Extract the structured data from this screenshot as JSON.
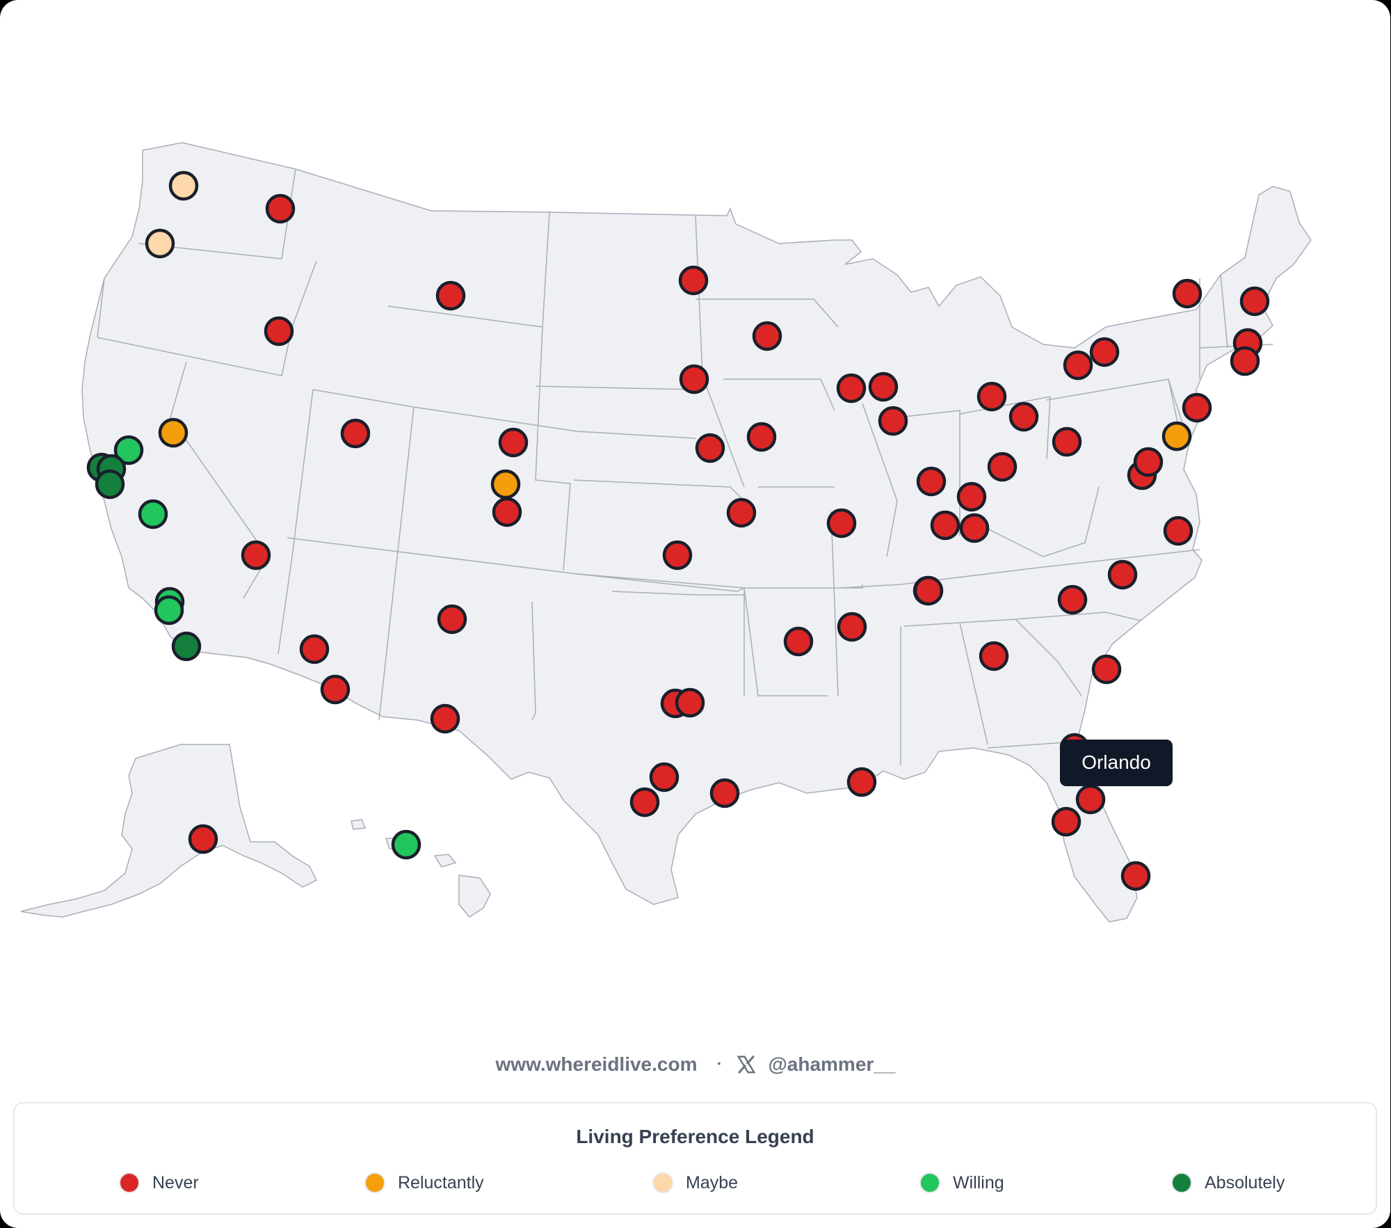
{
  "colors": {
    "never": "#dc2626",
    "reluctantly": "#f59e0b",
    "maybe": "#fed7aa",
    "willing": "#22c55e",
    "absolutely": "#15803d"
  },
  "tooltip": {
    "text": "Orlando"
  },
  "footer": {
    "site": "www.whereidlive.com",
    "separator": "·",
    "x_icon": "x-logo-icon",
    "handle": "@ahammer__"
  },
  "legend": {
    "title": "Living Preference Legend",
    "items": [
      {
        "label": "Never",
        "key": "never"
      },
      {
        "label": "Reluctantly",
        "key": "reluctantly"
      },
      {
        "label": "Maybe",
        "key": "maybe"
      },
      {
        "label": "Willing",
        "key": "willing"
      },
      {
        "label": "Absolutely",
        "key": "absolutely"
      }
    ]
  },
  "locations": [
    {
      "name": "Seattle",
      "pref": "maybe"
    },
    {
      "name": "Portland",
      "pref": "maybe"
    },
    {
      "name": "Spokane",
      "pref": "never"
    },
    {
      "name": "Boise",
      "pref": "never"
    },
    {
      "name": "Reno",
      "pref": "reluctantly"
    },
    {
      "name": "Sacramento",
      "pref": "willing"
    },
    {
      "name": "San Francisco",
      "pref": "absolutely"
    },
    {
      "name": "Oakland",
      "pref": "absolutely"
    },
    {
      "name": "San Jose",
      "pref": "absolutely"
    },
    {
      "name": "Fresno",
      "pref": "willing"
    },
    {
      "name": "Los Angeles",
      "pref": "willing"
    },
    {
      "name": "Long Beach",
      "pref": "willing"
    },
    {
      "name": "San Diego",
      "pref": "absolutely"
    },
    {
      "name": "Las Vegas",
      "pref": "never"
    },
    {
      "name": "Salt Lake City",
      "pref": "never"
    },
    {
      "name": "Billings",
      "pref": "never"
    },
    {
      "name": "Phoenix",
      "pref": "never"
    },
    {
      "name": "Tucson",
      "pref": "never"
    },
    {
      "name": "Albuquerque",
      "pref": "never"
    },
    {
      "name": "El Paso",
      "pref": "never"
    },
    {
      "name": "Fort Collins",
      "pref": "never"
    },
    {
      "name": "Denver",
      "pref": "reluctantly"
    },
    {
      "name": "Colorado Springs",
      "pref": "never"
    },
    {
      "name": "Fargo",
      "pref": "never"
    },
    {
      "name": "Sioux Falls",
      "pref": "never"
    },
    {
      "name": "Omaha",
      "pref": "never"
    },
    {
      "name": "Minneapolis",
      "pref": "never"
    },
    {
      "name": "Des Moines",
      "pref": "never"
    },
    {
      "name": "Kansas City",
      "pref": "never"
    },
    {
      "name": "Wichita",
      "pref": "never"
    },
    {
      "name": "Oklahoma City",
      "pref": "never"
    },
    {
      "name": "Dallas",
      "pref": "never"
    },
    {
      "name": "Fort Worth",
      "pref": "never"
    },
    {
      "name": "Austin",
      "pref": "never"
    },
    {
      "name": "San Antonio",
      "pref": "never"
    },
    {
      "name": "Houston",
      "pref": "never"
    },
    {
      "name": "New Orleans",
      "pref": "never"
    },
    {
      "name": "Little Rock",
      "pref": "never"
    },
    {
      "name": "Memphis",
      "pref": "never"
    },
    {
      "name": "St. Louis",
      "pref": "never"
    },
    {
      "name": "Madison",
      "pref": "never"
    },
    {
      "name": "Milwaukee",
      "pref": "never"
    },
    {
      "name": "Chicago",
      "pref": "never"
    },
    {
      "name": "Indianapolis",
      "pref": "never"
    },
    {
      "name": "Louisville",
      "pref": "never"
    },
    {
      "name": "Lexington",
      "pref": "never"
    },
    {
      "name": "Evansville",
      "pref": "never"
    },
    {
      "name": "Nashville",
      "pref": "never"
    },
    {
      "name": "Detroit",
      "pref": "never"
    },
    {
      "name": "Cleveland",
      "pref": "never"
    },
    {
      "name": "Columbus",
      "pref": "never"
    },
    {
      "name": "Pittsburgh",
      "pref": "never"
    },
    {
      "name": "Buffalo",
      "pref": "never"
    },
    {
      "name": "Rochester",
      "pref": "never"
    },
    {
      "name": "Burlington",
      "pref": "never"
    },
    {
      "name": "Portland ME",
      "pref": "never"
    },
    {
      "name": "Boston",
      "pref": "never"
    },
    {
      "name": "Providence",
      "pref": "never"
    },
    {
      "name": "New York",
      "pref": "never"
    },
    {
      "name": "Philadelphia",
      "pref": "reluctantly"
    },
    {
      "name": "Baltimore",
      "pref": "never"
    },
    {
      "name": "Washington DC",
      "pref": "never"
    },
    {
      "name": "Virginia Beach",
      "pref": "never"
    },
    {
      "name": "Raleigh",
      "pref": "never"
    },
    {
      "name": "Charlotte",
      "pref": "never"
    },
    {
      "name": "Charleston",
      "pref": "never"
    },
    {
      "name": "Atlanta",
      "pref": "never"
    },
    {
      "name": "Jacksonville",
      "pref": "never"
    },
    {
      "name": "Orlando",
      "pref": "never"
    },
    {
      "name": "Tampa",
      "pref": "never"
    },
    {
      "name": "Miami",
      "pref": "never"
    },
    {
      "name": "Anchorage",
      "pref": "never"
    },
    {
      "name": "Honolulu",
      "pref": "willing"
    }
  ]
}
